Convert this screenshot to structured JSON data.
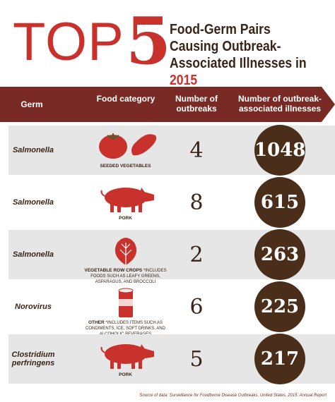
{
  "header": {
    "top": "TOP",
    "number": "5",
    "subtitle": "Food-Germ Pairs Causing Outbreak-Associated Illnesses in",
    "year": "2015"
  },
  "table": {
    "columns": [
      "Germ",
      "Food category",
      "Number of outbreaks",
      "Number of outbreak-associated illnesses"
    ],
    "rows": [
      {
        "germ": "Salmonella",
        "category": "SEEDED VEGETABLES",
        "outbreaks": "4",
        "illnesses": "1048"
      },
      {
        "germ": "Salmonella",
        "category": "PORK",
        "outbreaks": "8",
        "illnesses": "615"
      },
      {
        "germ": "Salmonella",
        "category": "VEGETABLE ROW CROPS",
        "note": "*INCLUDES FOODS SUCH AS LEAFY GREENS, ASPARAGUS, AND BROCCOLI",
        "outbreaks": "2",
        "illnesses": "263"
      },
      {
        "germ": "Norovirus",
        "category": "OTHER",
        "note": "*INCLUDES ITEMS SUCH AS CONDIMENTS, ICE, SOFT DRINKS, AND ALCOHOLIC BEVERAGES",
        "outbreaks": "6",
        "illnesses": "225"
      },
      {
        "germ": "Clostridium perfringens",
        "category": "PORK",
        "outbreaks": "5",
        "illnesses": "217"
      }
    ]
  },
  "footer": {
    "source": "Source of data: Surveillance for Foodborne Disease Outbreaks, United States, 2015: Annual Report"
  }
}
